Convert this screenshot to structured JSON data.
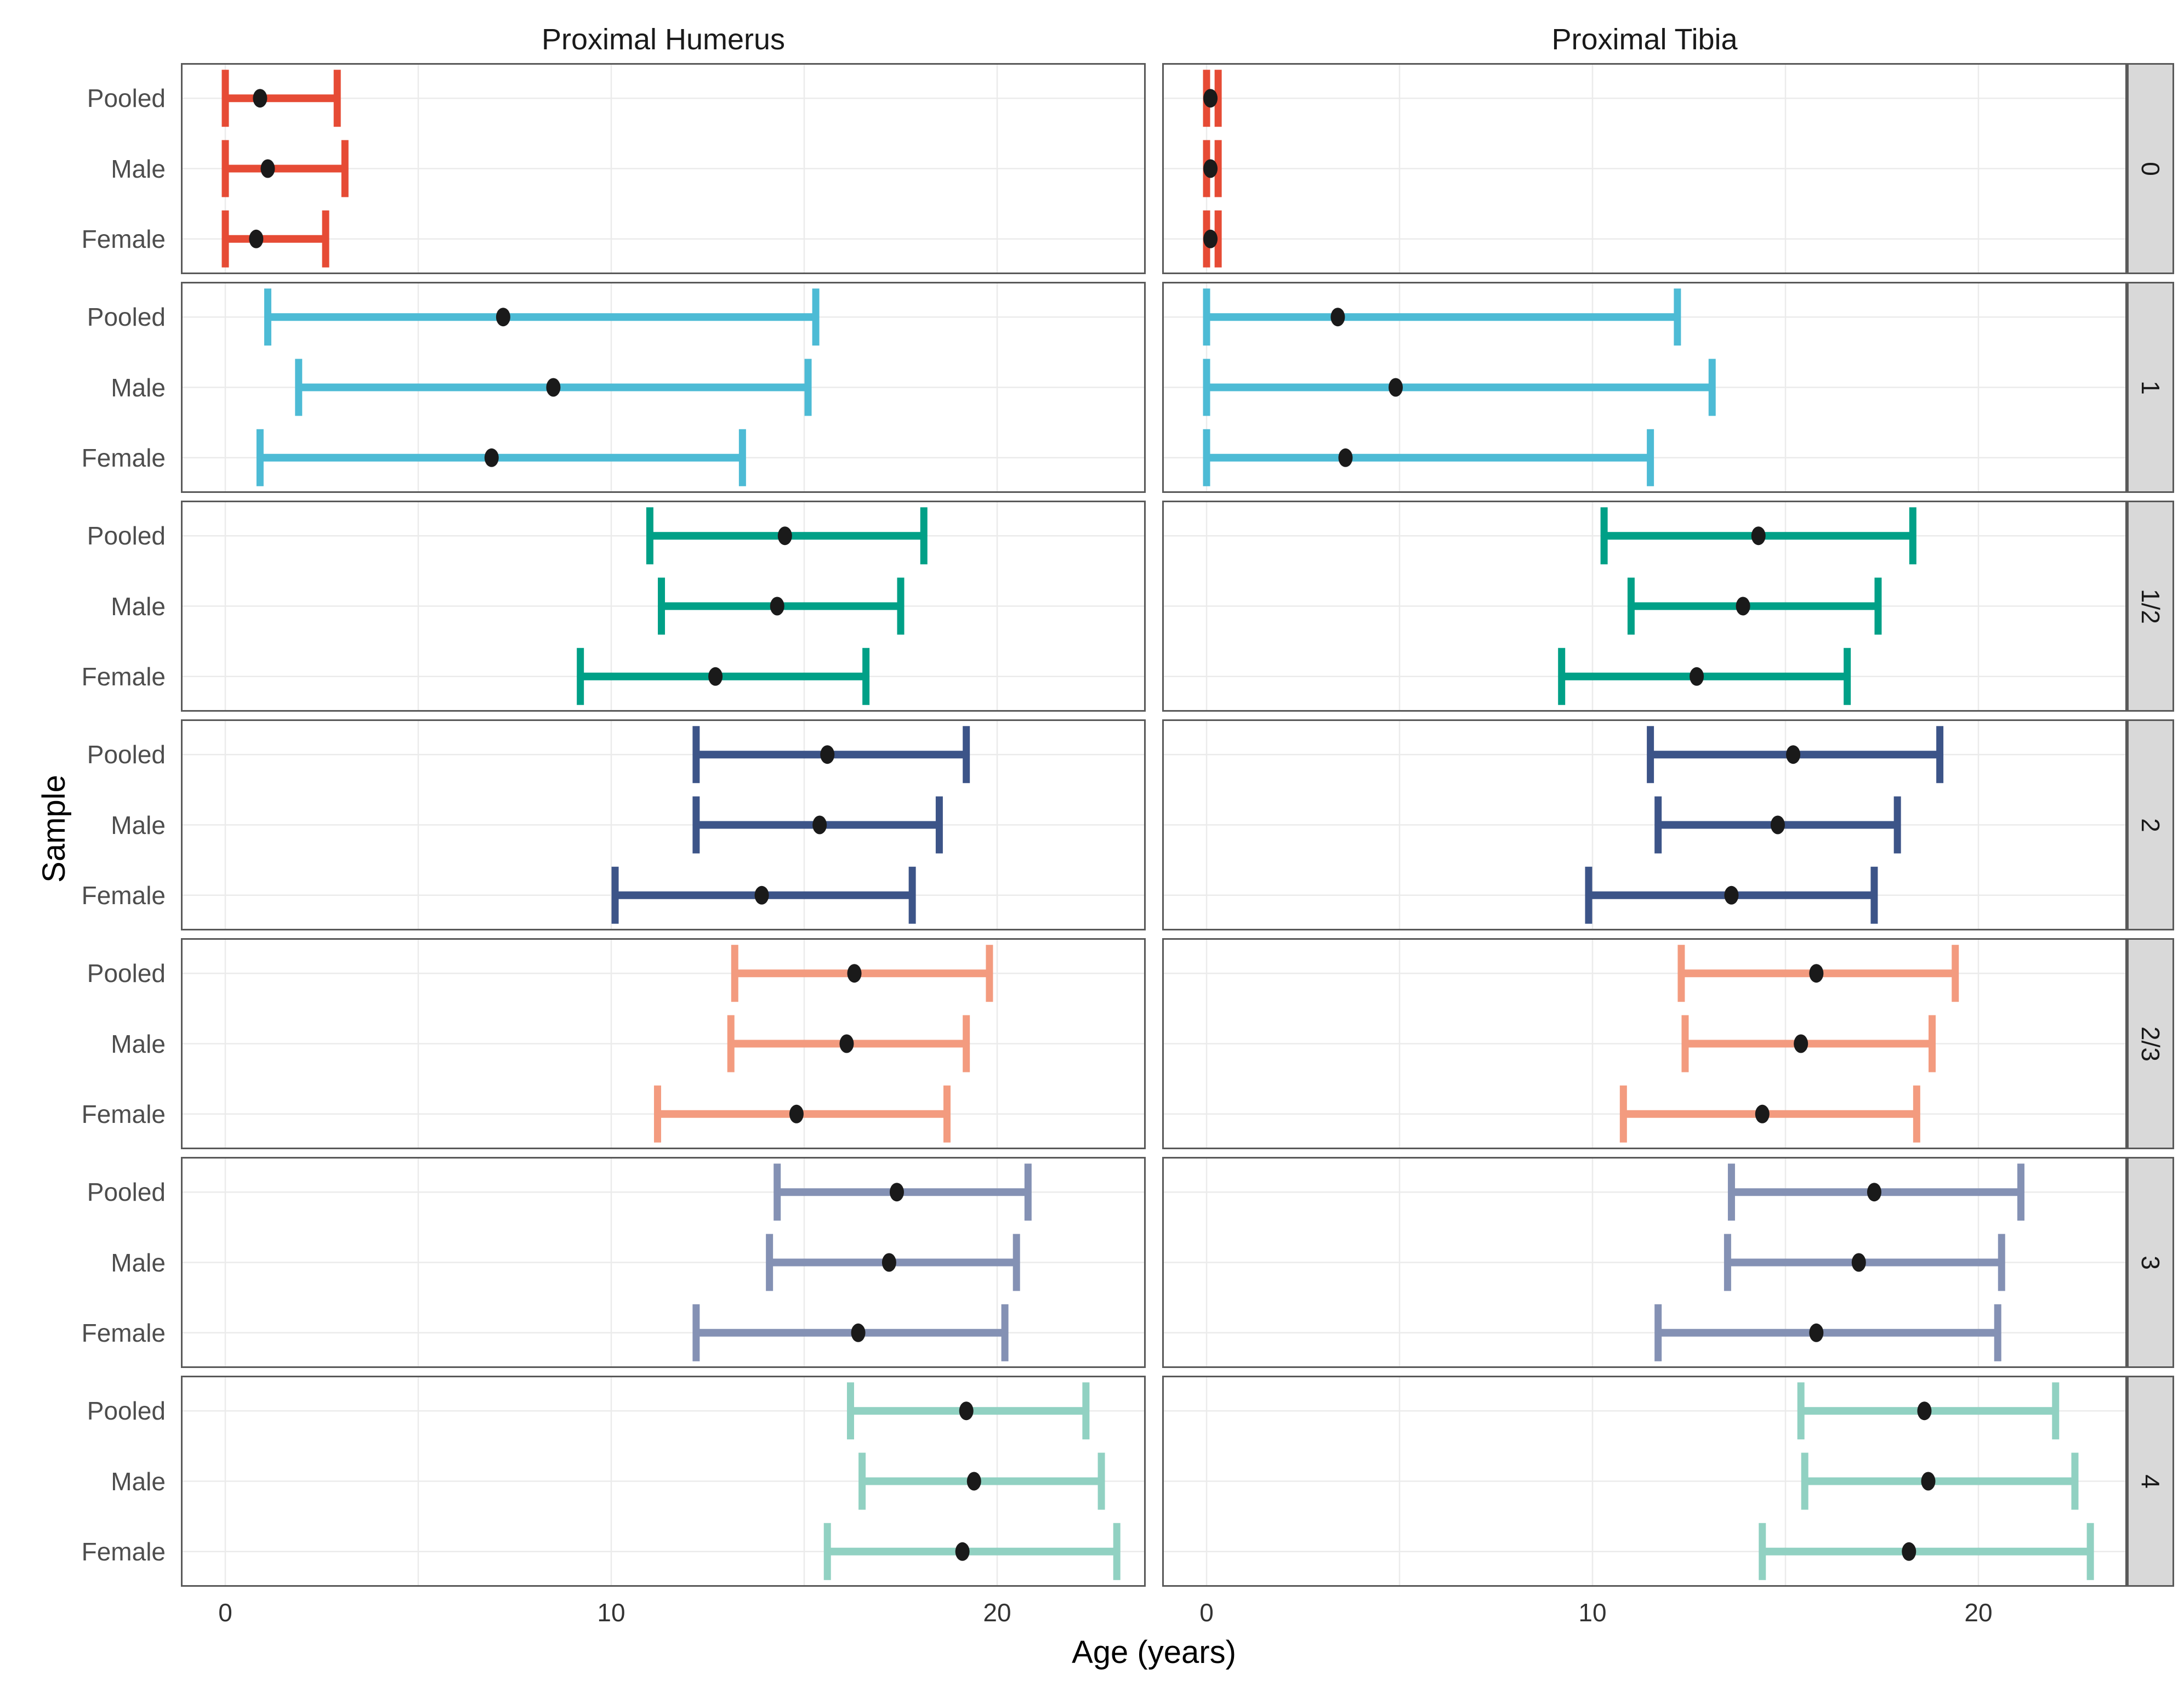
{
  "chart_data": {
    "type": "errorbar",
    "title": "",
    "xlabel": "Age (years)",
    "ylabel": "Sample",
    "x_ticks": [
      0,
      10,
      20
    ],
    "x_gridlines": [
      0,
      5,
      10,
      15,
      20
    ],
    "xlim": [
      -1.15,
      23.85
    ],
    "grid": true,
    "legend": "none",
    "col_facets": [
      "Proximal Humerus",
      "Proximal Tibia"
    ],
    "row_facets": [
      "0",
      "1",
      "1/2",
      "2",
      "2/3",
      "3",
      "4"
    ],
    "samples": [
      "Pooled",
      "Male",
      "Female"
    ],
    "sample_keys": [
      "pooled",
      "male",
      "female"
    ],
    "point_color": "#1a1a1a",
    "panel_border_color": "#595959",
    "gridline_color": "#ebebeb",
    "strip_bg_color": "#d9d9d9",
    "value_format": "[min, point_estimate, max] in years",
    "facets": [
      {
        "stage": "0",
        "color": "#E64B35",
        "humerus": {
          "pooled": [
            0.0,
            0.9,
            2.9
          ],
          "male": [
            0.0,
            1.1,
            3.1
          ],
          "female": [
            0.0,
            0.8,
            2.6
          ]
        },
        "tibia": {
          "pooled": [
            0.0,
            0.1,
            0.3
          ],
          "male": [
            0.0,
            0.1,
            0.3
          ],
          "female": [
            0.0,
            0.1,
            0.3
          ]
        }
      },
      {
        "stage": "1",
        "color": "#4DBBD5",
        "humerus": {
          "pooled": [
            1.1,
            7.2,
            15.3
          ],
          "male": [
            1.9,
            8.5,
            15.1
          ],
          "female": [
            0.9,
            6.9,
            13.4
          ]
        },
        "tibia": {
          "pooled": [
            0.0,
            3.4,
            12.2
          ],
          "male": [
            0.0,
            4.9,
            13.1
          ],
          "female": [
            0.0,
            3.6,
            11.5
          ]
        }
      },
      {
        "stage": "1/2",
        "color": "#00A087",
        "humerus": {
          "pooled": [
            11.0,
            14.5,
            18.1
          ],
          "male": [
            11.3,
            14.3,
            17.5
          ],
          "female": [
            9.2,
            12.7,
            16.6
          ]
        },
        "tibia": {
          "pooled": [
            10.3,
            14.3,
            18.3
          ],
          "male": [
            11.0,
            13.9,
            17.4
          ],
          "female": [
            9.2,
            12.7,
            16.6
          ]
        }
      },
      {
        "stage": "2",
        "color": "#3C5488",
        "humerus": {
          "pooled": [
            12.2,
            15.6,
            19.2
          ],
          "male": [
            12.2,
            15.4,
            18.5
          ],
          "female": [
            10.1,
            13.9,
            17.8
          ]
        },
        "tibia": {
          "pooled": [
            11.5,
            15.2,
            19.0
          ],
          "male": [
            11.7,
            14.8,
            17.9
          ],
          "female": [
            9.9,
            13.6,
            17.3
          ]
        }
      },
      {
        "stage": "2/3",
        "color": "#F39B7F",
        "humerus": {
          "pooled": [
            13.2,
            16.3,
            19.8
          ],
          "male": [
            13.1,
            16.1,
            19.2
          ],
          "female": [
            11.2,
            14.8,
            18.7
          ]
        },
        "tibia": {
          "pooled": [
            12.3,
            15.8,
            19.4
          ],
          "male": [
            12.4,
            15.4,
            18.8
          ],
          "female": [
            10.8,
            14.4,
            18.4
          ]
        }
      },
      {
        "stage": "3",
        "color": "#8491B4",
        "humerus": {
          "pooled": [
            14.3,
            17.4,
            20.8
          ],
          "male": [
            14.1,
            17.2,
            20.5
          ],
          "female": [
            12.2,
            16.4,
            20.2
          ]
        },
        "tibia": {
          "pooled": [
            13.6,
            17.3,
            21.1
          ],
          "male": [
            13.5,
            16.9,
            20.6
          ],
          "female": [
            11.7,
            15.8,
            20.5
          ]
        }
      },
      {
        "stage": "4",
        "color": "#91D1C2",
        "humerus": {
          "pooled": [
            16.2,
            19.2,
            22.3
          ],
          "male": [
            16.5,
            19.4,
            22.7
          ],
          "female": [
            15.6,
            19.1,
            23.1
          ]
        },
        "tibia": {
          "pooled": [
            15.4,
            18.6,
            22.0
          ],
          "male": [
            15.5,
            18.7,
            22.5
          ],
          "female": [
            14.4,
            18.2,
            22.9
          ]
        }
      }
    ]
  }
}
